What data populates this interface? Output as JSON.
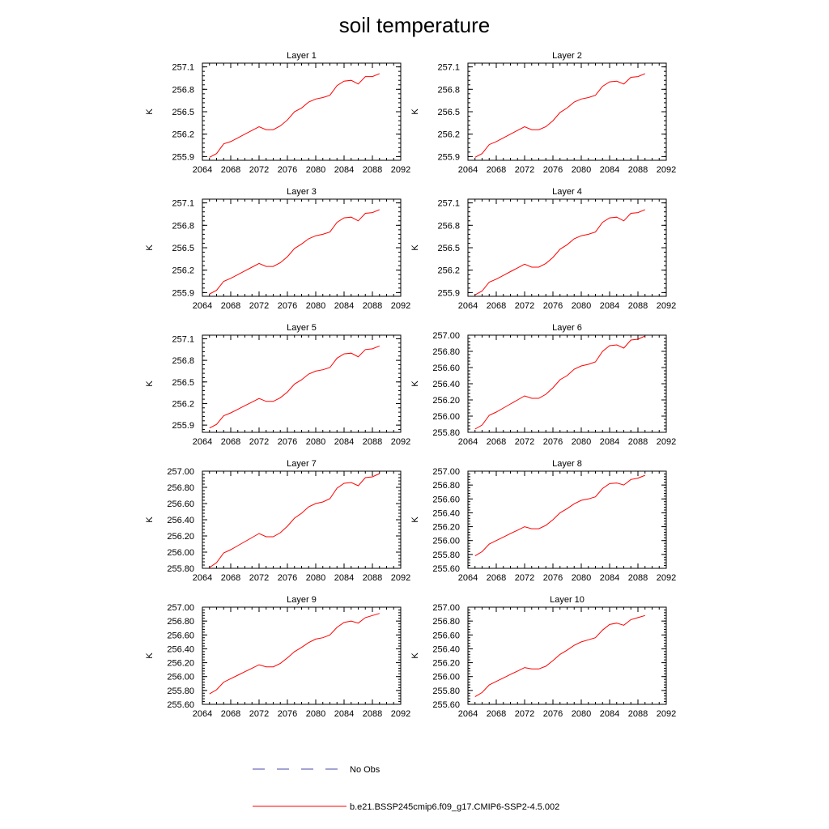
{
  "title": "soil temperature",
  "legend": {
    "placement": "bottom",
    "obs_label": "No Obs",
    "obs_color": "#4a4aa8",
    "model_label": "b.e21.BSSP245cmip6.f09_g17.CMIP6-SSP2-4.5.002",
    "model_color": "#ff0000"
  },
  "chart_data": [
    {
      "type": "line",
      "title": "Layer 1",
      "ylabel": "K",
      "xlim": [
        2064,
        2092
      ],
      "ylim": [
        255.85,
        257.15
      ],
      "yticks": [
        255.9,
        256.2,
        256.5,
        256.8,
        257.1
      ],
      "ytick_labels": [
        "255.9",
        "256.2",
        "256.5",
        "256.8",
        "257.1"
      ],
      "xticks": [
        2064,
        2068,
        2072,
        2076,
        2080,
        2084,
        2088,
        2092
      ],
      "series": [
        {
          "name": "b.e21.BSSP245cmip6.f09_g17.CMIP6-SSP2-4.5.002",
          "x": [
            2065,
            2066,
            2067,
            2068,
            2069,
            2070,
            2071,
            2072,
            2073,
            2074,
            2075,
            2076,
            2077,
            2078,
            2079,
            2080,
            2081,
            2082,
            2083,
            2084,
            2085,
            2086,
            2087,
            2088,
            2089
          ],
          "y": [
            255.89,
            255.94,
            256.07,
            256.1,
            256.15,
            256.2,
            256.25,
            256.3,
            256.26,
            256.26,
            256.31,
            256.39,
            256.5,
            256.55,
            256.63,
            256.67,
            256.69,
            256.72,
            256.85,
            256.91,
            256.92,
            256.87,
            256.97,
            256.97,
            257.01
          ]
        }
      ]
    },
    {
      "type": "line",
      "title": "Layer 2",
      "ylabel": "K",
      "xlim": [
        2064,
        2092
      ],
      "ylim": [
        255.85,
        257.15
      ],
      "yticks": [
        255.9,
        256.2,
        256.5,
        256.8,
        257.1
      ],
      "ytick_labels": [
        "255.9",
        "256.2",
        "256.5",
        "256.8",
        "257.1"
      ],
      "xticks": [
        2064,
        2068,
        2072,
        2076,
        2080,
        2084,
        2088,
        2092
      ],
      "series": [
        {
          "name": "b.e21.BSSP245cmip6.f09_g17.CMIP6-SSP2-4.5.002",
          "x": [
            2065,
            2066,
            2067,
            2068,
            2069,
            2070,
            2071,
            2072,
            2073,
            2074,
            2075,
            2076,
            2077,
            2078,
            2079,
            2080,
            2081,
            2082,
            2083,
            2084,
            2085,
            2086,
            2087,
            2088,
            2089
          ],
          "y": [
            255.89,
            255.94,
            256.06,
            256.1,
            256.15,
            256.2,
            256.25,
            256.3,
            256.26,
            256.26,
            256.3,
            256.38,
            256.49,
            256.55,
            256.63,
            256.67,
            256.69,
            256.72,
            256.84,
            256.9,
            256.91,
            256.87,
            256.96,
            256.97,
            257.01
          ]
        }
      ]
    },
    {
      "type": "line",
      "title": "Layer 3",
      "ylabel": "K",
      "xlim": [
        2064,
        2092
      ],
      "ylim": [
        255.85,
        257.15
      ],
      "yticks": [
        255.9,
        256.2,
        256.5,
        256.8,
        257.1
      ],
      "ytick_labels": [
        "255.9",
        "256.2",
        "256.5",
        "256.8",
        "257.1"
      ],
      "xticks": [
        2064,
        2068,
        2072,
        2076,
        2080,
        2084,
        2088,
        2092
      ],
      "series": [
        {
          "name": "b.e21.BSSP245cmip6.f09_g17.CMIP6-SSP2-4.5.002",
          "x": [
            2065,
            2066,
            2067,
            2068,
            2069,
            2070,
            2071,
            2072,
            2073,
            2074,
            2075,
            2076,
            2077,
            2078,
            2079,
            2080,
            2081,
            2082,
            2083,
            2084,
            2085,
            2086,
            2087,
            2088,
            2089
          ],
          "y": [
            255.88,
            255.93,
            256.05,
            256.09,
            256.14,
            256.19,
            256.24,
            256.29,
            256.25,
            256.25,
            256.3,
            256.38,
            256.49,
            256.55,
            256.62,
            256.66,
            256.68,
            256.71,
            256.84,
            256.9,
            256.91,
            256.86,
            256.96,
            256.97,
            257.01
          ]
        }
      ]
    },
    {
      "type": "line",
      "title": "Layer 4",
      "ylabel": "K",
      "xlim": [
        2064,
        2092
      ],
      "ylim": [
        255.85,
        257.15
      ],
      "yticks": [
        255.9,
        256.2,
        256.5,
        256.8,
        257.1
      ],
      "ytick_labels": [
        "255.9",
        "256.2",
        "256.5",
        "256.8",
        "257.1"
      ],
      "xticks": [
        2064,
        2068,
        2072,
        2076,
        2080,
        2084,
        2088,
        2092
      ],
      "series": [
        {
          "name": "b.e21.BSSP245cmip6.f09_g17.CMIP6-SSP2-4.5.002",
          "x": [
            2065,
            2066,
            2067,
            2068,
            2069,
            2070,
            2071,
            2072,
            2073,
            2074,
            2075,
            2076,
            2077,
            2078,
            2079,
            2080,
            2081,
            2082,
            2083,
            2084,
            2085,
            2086,
            2087,
            2088,
            2089
          ],
          "y": [
            255.87,
            255.92,
            256.04,
            256.08,
            256.13,
            256.18,
            256.23,
            256.28,
            256.24,
            256.24,
            256.29,
            256.37,
            256.48,
            256.54,
            256.62,
            256.66,
            256.68,
            256.71,
            256.84,
            256.9,
            256.91,
            256.86,
            256.96,
            256.97,
            257.01
          ]
        }
      ]
    },
    {
      "type": "line",
      "title": "Layer 5",
      "ylabel": "K",
      "xlim": [
        2064,
        2092
      ],
      "ylim": [
        255.8,
        257.15
      ],
      "yticks": [
        255.9,
        256.2,
        256.5,
        256.8,
        257.1
      ],
      "ytick_labels": [
        "255.9",
        "256.2",
        "256.5",
        "256.8",
        "257.1"
      ],
      "xticks": [
        2064,
        2068,
        2072,
        2076,
        2080,
        2084,
        2088,
        2092
      ],
      "series": [
        {
          "name": "b.e21.BSSP245cmip6.f09_g17.CMIP6-SSP2-4.5.002",
          "x": [
            2065,
            2066,
            2067,
            2068,
            2069,
            2070,
            2071,
            2072,
            2073,
            2074,
            2075,
            2076,
            2077,
            2078,
            2079,
            2080,
            2081,
            2082,
            2083,
            2084,
            2085,
            2086,
            2087,
            2088,
            2089
          ],
          "y": [
            255.86,
            255.91,
            256.03,
            256.07,
            256.12,
            256.17,
            256.22,
            256.27,
            256.23,
            256.23,
            256.28,
            256.36,
            256.47,
            256.53,
            256.61,
            256.65,
            256.67,
            256.7,
            256.83,
            256.89,
            256.9,
            256.85,
            256.95,
            256.96,
            257.0
          ]
        }
      ]
    },
    {
      "type": "line",
      "title": "Layer 6",
      "ylabel": "K",
      "xlim": [
        2064,
        2092
      ],
      "ylim": [
        255.8,
        257.0
      ],
      "yticks": [
        255.8,
        256.0,
        256.2,
        256.4,
        256.6,
        256.8,
        257.0
      ],
      "ytick_labels": [
        "255.80",
        "256.00",
        "256.20",
        "256.40",
        "256.60",
        "256.80",
        "257.00"
      ],
      "xticks": [
        2064,
        2068,
        2072,
        2076,
        2080,
        2084,
        2088,
        2092
      ],
      "series": [
        {
          "name": "b.e21.BSSP245cmip6.f09_g17.CMIP6-SSP2-4.5.002",
          "x": [
            2065,
            2066,
            2067,
            2068,
            2069,
            2070,
            2071,
            2072,
            2073,
            2074,
            2075,
            2076,
            2077,
            2078,
            2079,
            2080,
            2081,
            2082,
            2083,
            2084,
            2085,
            2086,
            2087,
            2088,
            2089
          ],
          "y": [
            255.84,
            255.89,
            256.01,
            256.05,
            256.1,
            256.15,
            256.2,
            256.25,
            256.22,
            256.22,
            256.27,
            256.35,
            256.45,
            256.5,
            256.58,
            256.62,
            256.64,
            256.67,
            256.8,
            256.87,
            256.88,
            256.84,
            256.94,
            256.95,
            256.99
          ]
        }
      ]
    },
    {
      "type": "line",
      "title": "Layer 7",
      "ylabel": "K",
      "xlim": [
        2064,
        2092
      ],
      "ylim": [
        255.8,
        257.0
      ],
      "yticks": [
        255.8,
        256.0,
        256.2,
        256.4,
        256.6,
        256.8,
        257.0
      ],
      "ytick_labels": [
        "255.80",
        "256.00",
        "256.20",
        "256.40",
        "256.60",
        "256.80",
        "257.00"
      ],
      "xticks": [
        2064,
        2068,
        2072,
        2076,
        2080,
        2084,
        2088,
        2092
      ],
      "series": [
        {
          "name": "b.e21.BSSP245cmip6.f09_g17.CMIP6-SSP2-4.5.002",
          "x": [
            2065,
            2066,
            2067,
            2068,
            2069,
            2070,
            2071,
            2072,
            2073,
            2074,
            2075,
            2076,
            2077,
            2078,
            2079,
            2080,
            2081,
            2082,
            2083,
            2084,
            2085,
            2086,
            2087,
            2088,
            2089
          ],
          "y": [
            255.81,
            255.87,
            255.99,
            256.03,
            256.08,
            256.13,
            256.18,
            256.23,
            256.19,
            256.19,
            256.24,
            256.32,
            256.42,
            256.48,
            256.56,
            256.6,
            256.62,
            256.66,
            256.79,
            256.85,
            256.86,
            256.82,
            256.92,
            256.93,
            256.97
          ]
        }
      ]
    },
    {
      "type": "line",
      "title": "Layer 8",
      "ylabel": "K",
      "xlim": [
        2064,
        2092
      ],
      "ylim": [
        255.6,
        257.0
      ],
      "yticks": [
        255.6,
        255.8,
        256.0,
        256.2,
        256.4,
        256.6,
        256.8,
        257.0
      ],
      "ytick_labels": [
        "255.60",
        "255.80",
        "256.00",
        "256.20",
        "256.40",
        "256.60",
        "256.80",
        "257.00"
      ],
      "xticks": [
        2064,
        2068,
        2072,
        2076,
        2080,
        2084,
        2088,
        2092
      ],
      "series": [
        {
          "name": "b.e21.BSSP245cmip6.f09_g17.CMIP6-SSP2-4.5.002",
          "x": [
            2065,
            2066,
            2067,
            2068,
            2069,
            2070,
            2071,
            2072,
            2073,
            2074,
            2075,
            2076,
            2077,
            2078,
            2079,
            2080,
            2081,
            2082,
            2083,
            2084,
            2085,
            2086,
            2087,
            2088,
            2089
          ],
          "y": [
            255.78,
            255.84,
            255.95,
            256.0,
            256.05,
            256.1,
            256.15,
            256.2,
            256.17,
            256.17,
            256.22,
            256.3,
            256.4,
            256.46,
            256.53,
            256.58,
            256.6,
            256.63,
            256.75,
            256.82,
            256.83,
            256.8,
            256.88,
            256.9,
            256.94
          ]
        }
      ]
    },
    {
      "type": "line",
      "title": "Layer 9",
      "ylabel": "K",
      "xlim": [
        2064,
        2092
      ],
      "ylim": [
        255.6,
        257.0
      ],
      "yticks": [
        255.6,
        255.8,
        256.0,
        256.2,
        256.4,
        256.6,
        256.8,
        257.0
      ],
      "ytick_labels": [
        "255.60",
        "255.80",
        "256.00",
        "256.20",
        "256.40",
        "256.60",
        "256.80",
        "257.00"
      ],
      "xticks": [
        2064,
        2068,
        2072,
        2076,
        2080,
        2084,
        2088,
        2092
      ],
      "series": [
        {
          "name": "b.e21.BSSP245cmip6.f09_g17.CMIP6-SSP2-4.5.002",
          "x": [
            2065,
            2066,
            2067,
            2068,
            2069,
            2070,
            2071,
            2072,
            2073,
            2074,
            2075,
            2076,
            2077,
            2078,
            2079,
            2080,
            2081,
            2082,
            2083,
            2084,
            2085,
            2086,
            2087,
            2088,
            2089
          ],
          "y": [
            255.75,
            255.81,
            255.92,
            255.97,
            256.02,
            256.07,
            256.12,
            256.17,
            256.14,
            256.14,
            256.19,
            256.27,
            256.36,
            256.42,
            256.49,
            256.54,
            256.56,
            256.6,
            256.71,
            256.78,
            256.8,
            256.77,
            256.85,
            256.88,
            256.91
          ]
        }
      ]
    },
    {
      "type": "line",
      "title": "Layer 10",
      "ylabel": "K",
      "xlim": [
        2064,
        2092
      ],
      "ylim": [
        255.6,
        257.0
      ],
      "yticks": [
        255.6,
        255.8,
        256.0,
        256.2,
        256.4,
        256.6,
        256.8,
        257.0
      ],
      "ytick_labels": [
        "255.60",
        "255.80",
        "256.00",
        "256.20",
        "256.40",
        "256.60",
        "256.80",
        "257.00"
      ],
      "xticks": [
        2064,
        2068,
        2072,
        2076,
        2080,
        2084,
        2088,
        2092
      ],
      "series": [
        {
          "name": "b.e21.BSSP245cmip6.f09_g17.CMIP6-SSP2-4.5.002",
          "x": [
            2065,
            2066,
            2067,
            2068,
            2069,
            2070,
            2071,
            2072,
            2073,
            2074,
            2075,
            2076,
            2077,
            2078,
            2079,
            2080,
            2081,
            2082,
            2083,
            2084,
            2085,
            2086,
            2087,
            2088,
            2089
          ],
          "y": [
            255.71,
            255.77,
            255.88,
            255.93,
            255.98,
            256.03,
            256.08,
            256.13,
            256.11,
            256.11,
            256.15,
            256.23,
            256.32,
            256.38,
            256.45,
            256.5,
            256.53,
            256.56,
            256.67,
            256.75,
            256.77,
            256.74,
            256.82,
            256.85,
            256.88
          ]
        }
      ]
    }
  ]
}
